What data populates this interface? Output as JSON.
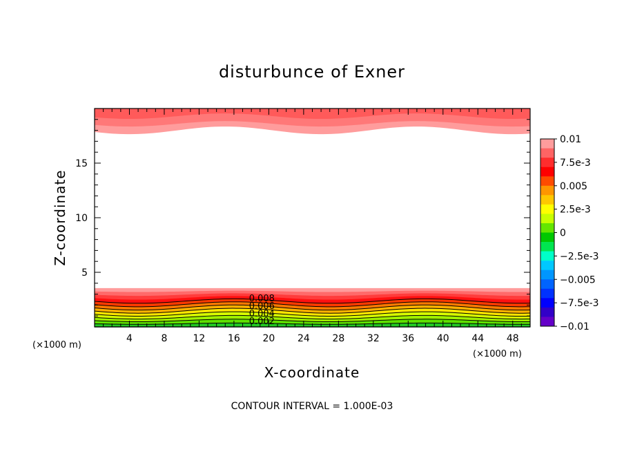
{
  "chart_data": {
    "type": "contour",
    "title": "disturbunce of Exner",
    "xlabel": "X-coordinate",
    "ylabel": "Z-coordinate",
    "x_unit": "(×1000 m)",
    "y_unit": "(×1000 m)",
    "xlim": [
      0,
      50
    ],
    "ylim": [
      0,
      20
    ],
    "x_ticks": [
      4,
      8,
      12,
      16,
      20,
      24,
      28,
      32,
      36,
      40,
      44,
      48
    ],
    "y_ticks": [
      5,
      10,
      15
    ],
    "colorbar": {
      "range": [
        -0.01,
        0.01
      ],
      "labels": [
        "0.01",
        "7.5e-3",
        "0.005",
        "2.5e-3",
        "0",
        "−2.5e-3",
        "−0.005",
        "−7.5e-3",
        "−0.01"
      ],
      "colors": [
        "#ff9c9c",
        "#ff6464",
        "#ff2d2d",
        "#ff0000",
        "#ff4b00",
        "#ff9600",
        "#ffc800",
        "#ffff00",
        "#c8ff00",
        "#64e600",
        "#00c800",
        "#00e650",
        "#00ffc8",
        "#00c8ff",
        "#0096ff",
        "#0064ff",
        "#0032ff",
        "#0000ff",
        "#3200c8",
        "#6400c8"
      ]
    },
    "contour_labels": [
      "0.008",
      "0.006",
      "0.004",
      "0.002"
    ],
    "contour_interval_text": "CONTOUR INTERVAL = 1.000E-03",
    "lower_band_colors": [
      "#21c821",
      "#5fe000",
      "#9ff000",
      "#d8ff00",
      "#ffe600",
      "#ffb000",
      "#ff7a00",
      "#ff3a00",
      "#ff1010",
      "#ff3c3c",
      "#ff6a6a",
      "#ff9c9c"
    ],
    "upper_band_colors": [
      "#ff9c9c",
      "#ff7878",
      "#ff5a5a"
    ],
    "colors": {
      "axis": "#000000",
      "background": "#ffffff"
    }
  }
}
